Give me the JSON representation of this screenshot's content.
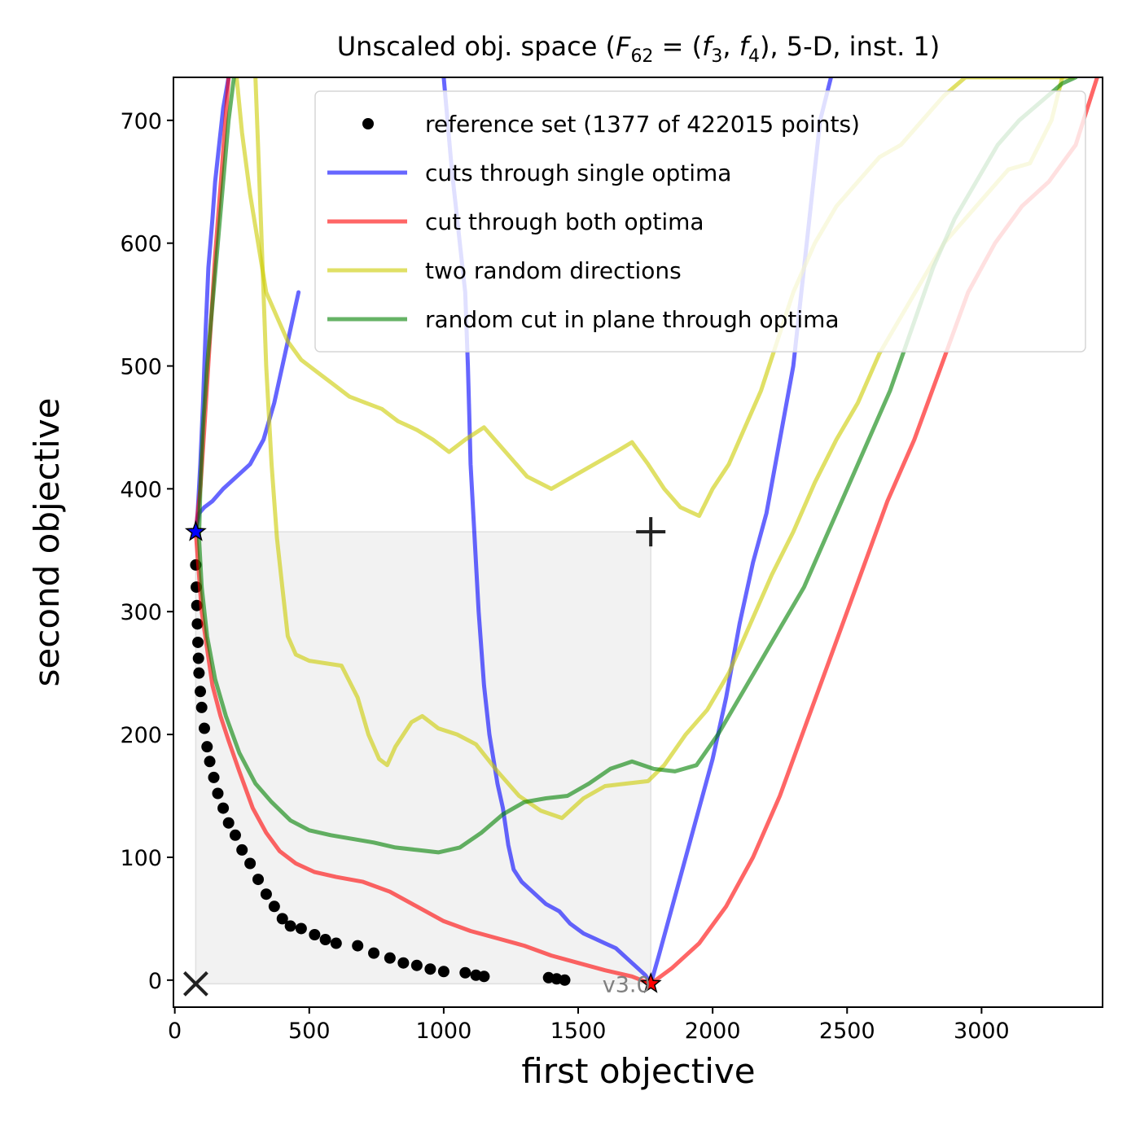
{
  "chart_data": {
    "type": "line",
    "title_parts": {
      "prefix": "Unscaled obj. space (",
      "fname": "F",
      "fsub": "62",
      "eq": " = (",
      "f1": "f",
      "f1sub": "3",
      "comma": ", ",
      "f2": "f",
      "f2sub": "4",
      "suffix": "), 5-D, inst. 1)"
    },
    "xlabel": "first objective",
    "ylabel": "second objective",
    "xlim": [
      -5,
      3450
    ],
    "ylim": [
      -22,
      735
    ],
    "xticks": [
      0,
      500,
      1000,
      1500,
      2000,
      2500,
      3000
    ],
    "yticks": [
      0,
      100,
      200,
      300,
      400,
      500,
      600,
      700
    ],
    "grid": false,
    "legend_position": "top-right",
    "annotation": "v3.0",
    "region_of_interest": {
      "x": [
        78,
        1770
      ],
      "y": [
        -3,
        365
      ]
    },
    "markers": {
      "ideal_point": {
        "symbol": "x",
        "x": 78,
        "y": -3
      },
      "nadir_point": {
        "symbol": "+",
        "x": 1770,
        "y": 365
      },
      "optimum_1": {
        "symbol": "star",
        "x": 78,
        "y": 365,
        "color": "#0000ff"
      },
      "optimum_2": {
        "symbol": "star",
        "x": 1770,
        "y": -3,
        "color": "#ff0000"
      }
    },
    "series": [
      {
        "name": "reference set (1377 of 422015 points)",
        "kind": "points",
        "color": "#000000",
        "x": [
          78,
          80,
          82,
          84,
          86,
          88,
          90,
          95,
          100,
          110,
          120,
          130,
          145,
          160,
          180,
          200,
          225,
          250,
          280,
          310,
          340,
          370,
          400,
          430,
          470,
          520,
          560,
          600,
          680,
          740,
          800,
          850,
          900,
          950,
          1000,
          1080,
          1120,
          1150,
          1390,
          1420,
          1450
        ],
        "y": [
          338,
          320,
          305,
          290,
          275,
          262,
          250,
          235,
          222,
          205,
          190,
          178,
          165,
          152,
          140,
          128,
          118,
          106,
          95,
          82,
          70,
          60,
          50,
          44,
          42,
          37,
          33,
          30,
          28,
          22,
          18,
          14,
          12,
          9,
          7,
          6,
          4,
          3,
          2,
          1,
          0
        ]
      },
      {
        "name": "cuts through single optima",
        "kind": "lines",
        "color": "#0000ff",
        "lines": [
          {
            "x": [
              78,
              90,
              110,
              140,
              180,
              230,
              280,
              330,
              370,
              420,
              460
            ],
            "y": [
              365,
              380,
              385,
              390,
              400,
              410,
              420,
              440,
              470,
              520,
              560
            ]
          },
          {
            "x": [
              1000,
              1030,
              1060,
              1080,
              1090,
              1095,
              1100,
              1110,
              1120,
              1130,
              1150,
              1170,
              1200,
              1220,
              1240,
              1260,
              1290,
              1330,
              1380,
              1430,
              1470,
              1520,
              1560,
              1600,
              1640,
              1680,
              1720,
              1750,
              1770
            ],
            "y": [
              735,
              660,
              600,
              560,
              500,
              460,
              420,
              380,
              340,
              300,
              240,
              200,
              160,
              140,
              110,
              90,
              80,
              72,
              62,
              56,
              46,
              38,
              34,
              30,
              26,
              18,
              10,
              4,
              -3
            ]
          },
          {
            "x": [
              1770,
              1800,
              1850,
              1900,
              1950,
              2000,
              2050,
              2100,
              2150,
              2200,
              2250,
              2300,
              2350,
              2400,
              2440
            ],
            "y": [
              -3,
              20,
              60,
              100,
              140,
              180,
              230,
              290,
              340,
              380,
              440,
              500,
              600,
              700,
              735
            ]
          },
          {
            "x": [
              78,
              85,
              95,
              105,
              115,
              125,
              140,
              150,
              165,
              180,
              200
            ],
            "y": [
              365,
              380,
              420,
              470,
              530,
              580,
              620,
              650,
              680,
              710,
              735
            ]
          }
        ]
      },
      {
        "name": "cut through both optima",
        "kind": "lines",
        "color": "#ff0000",
        "lines": [
          {
            "x": [
              78,
              90,
              100,
              120,
              140,
              170,
              200,
              240,
              290,
              340,
              390,
              450,
              520,
              600,
              700,
              800,
              900,
              1000,
              1100,
              1200,
              1300,
              1400,
              1500,
              1600,
              1700,
              1770
            ],
            "y": [
              365,
              330,
              300,
              270,
              240,
              215,
              195,
              170,
              140,
              120,
              105,
              95,
              88,
              84,
              80,
              72,
              60,
              48,
              40,
              34,
              28,
              20,
              14,
              8,
              3,
              -3
            ]
          },
          {
            "x": [
              1770,
              1850,
              1950,
              2050,
              2150,
              2250,
              2350,
              2450,
              2550,
              2650,
              2750,
              2850,
              2950,
              3050,
              3150,
              3250,
              3350,
              3430
            ],
            "y": [
              -3,
              10,
              30,
              60,
              100,
              150,
              210,
              270,
              330,
              390,
              440,
              500,
              560,
              600,
              630,
              650,
              680,
              735
            ]
          },
          {
            "x": [
              78,
              95,
              110,
              130,
              150,
              175,
              200
            ],
            "y": [
              365,
              400,
              450,
              520,
              590,
              660,
              735
            ]
          }
        ]
      },
      {
        "name": "two random directions",
        "kind": "lines",
        "color": "#cccc00",
        "lines": [
          {
            "x": [
              300,
              320,
              340,
              360,
              380,
              400,
              420,
              450,
              500,
              560,
              620,
              680,
              720,
              760,
              790,
              820,
              850,
              880,
              920,
              980,
              1050,
              1120,
              1200,
              1280,
              1360,
              1440,
              1520,
              1600,
              1680,
              1760,
              1820,
              1900,
              1980,
              2060,
              2140,
              2220,
              2300,
              2380,
              2460,
              2540,
              2620,
              2700,
              2780,
              2860,
              2940,
              3020,
              3100,
              3180,
              3260,
              3300
            ],
            "y": [
              735,
              620,
              500,
              420,
              360,
              320,
              280,
              265,
              260,
              258,
              256,
              230,
              200,
              180,
              175,
              190,
              200,
              210,
              215,
              205,
              200,
              192,
              170,
              150,
              138,
              132,
              148,
              158,
              160,
              162,
              175,
              200,
              220,
              250,
              290,
              330,
              365,
              405,
              440,
              470,
              510,
              540,
              570,
              600,
              620,
              640,
              660,
              665,
              700,
              735
            ]
          },
          {
            "x": [
              230,
              250,
              280,
              310,
              340,
              380,
              420,
              470,
              530,
              590,
              650,
              710,
              770,
              830,
              900,
              960,
              1020,
              1080,
              1150,
              1230,
              1310,
              1400,
              1480,
              1560,
              1640,
              1700,
              1760,
              1820,
              1880,
              1950,
              2000,
              2060,
              2120,
              2180,
              2240,
              2300,
              2380,
              2460,
              2540,
              2620,
              2700,
              2780,
              2860,
              2940,
              3020,
              3100,
              3180,
              3260,
              3340
            ],
            "y": [
              735,
              690,
              640,
              600,
              560,
              540,
              520,
              505,
              495,
              485,
              475,
              470,
              465,
              455,
              448,
              440,
              430,
              440,
              450,
              430,
              410,
              400,
              410,
              420,
              430,
              438,
              420,
              400,
              385,
              378,
              400,
              420,
              450,
              480,
              520,
              560,
              600,
              630,
              650,
              670,
              680,
              700,
              720,
              735,
              735,
              735,
              735,
              735,
              735
            ]
          }
        ]
      },
      {
        "name": "random cut in plane through optima",
        "kind": "lines",
        "color": "#008000",
        "lines": [
          {
            "x": [
              220,
              200,
              180,
              160,
              140,
              120,
              105,
              95,
              90,
              100,
              120,
              150,
              190,
              240,
              300,
              360,
              430,
              500,
              580,
              660,
              740,
              820,
              900,
              980,
              1060,
              1140,
              1220,
              1300,
              1380,
              1460,
              1540,
              1620,
              1700,
              1780,
              1860,
              1940,
              2020,
              2100,
              2180,
              2260,
              2340,
              2420,
              2500,
              2580,
              2660,
              2740,
              2820,
              2900,
              2980,
              3060,
              3140,
              3220,
              3300,
              3350
            ],
            "y": [
              735,
              700,
              650,
              600,
              550,
              500,
              450,
              400,
              360,
              320,
              280,
              245,
              215,
              185,
              160,
              145,
              130,
              122,
              118,
              115,
              112,
              108,
              106,
              104,
              108,
              120,
              135,
              145,
              148,
              150,
              160,
              172,
              178,
              172,
              170,
              175,
              200,
              230,
              260,
              290,
              320,
              360,
              400,
              440,
              480,
              530,
              580,
              620,
              650,
              680,
              700,
              715,
              730,
              735
            ]
          }
        ]
      }
    ]
  }
}
